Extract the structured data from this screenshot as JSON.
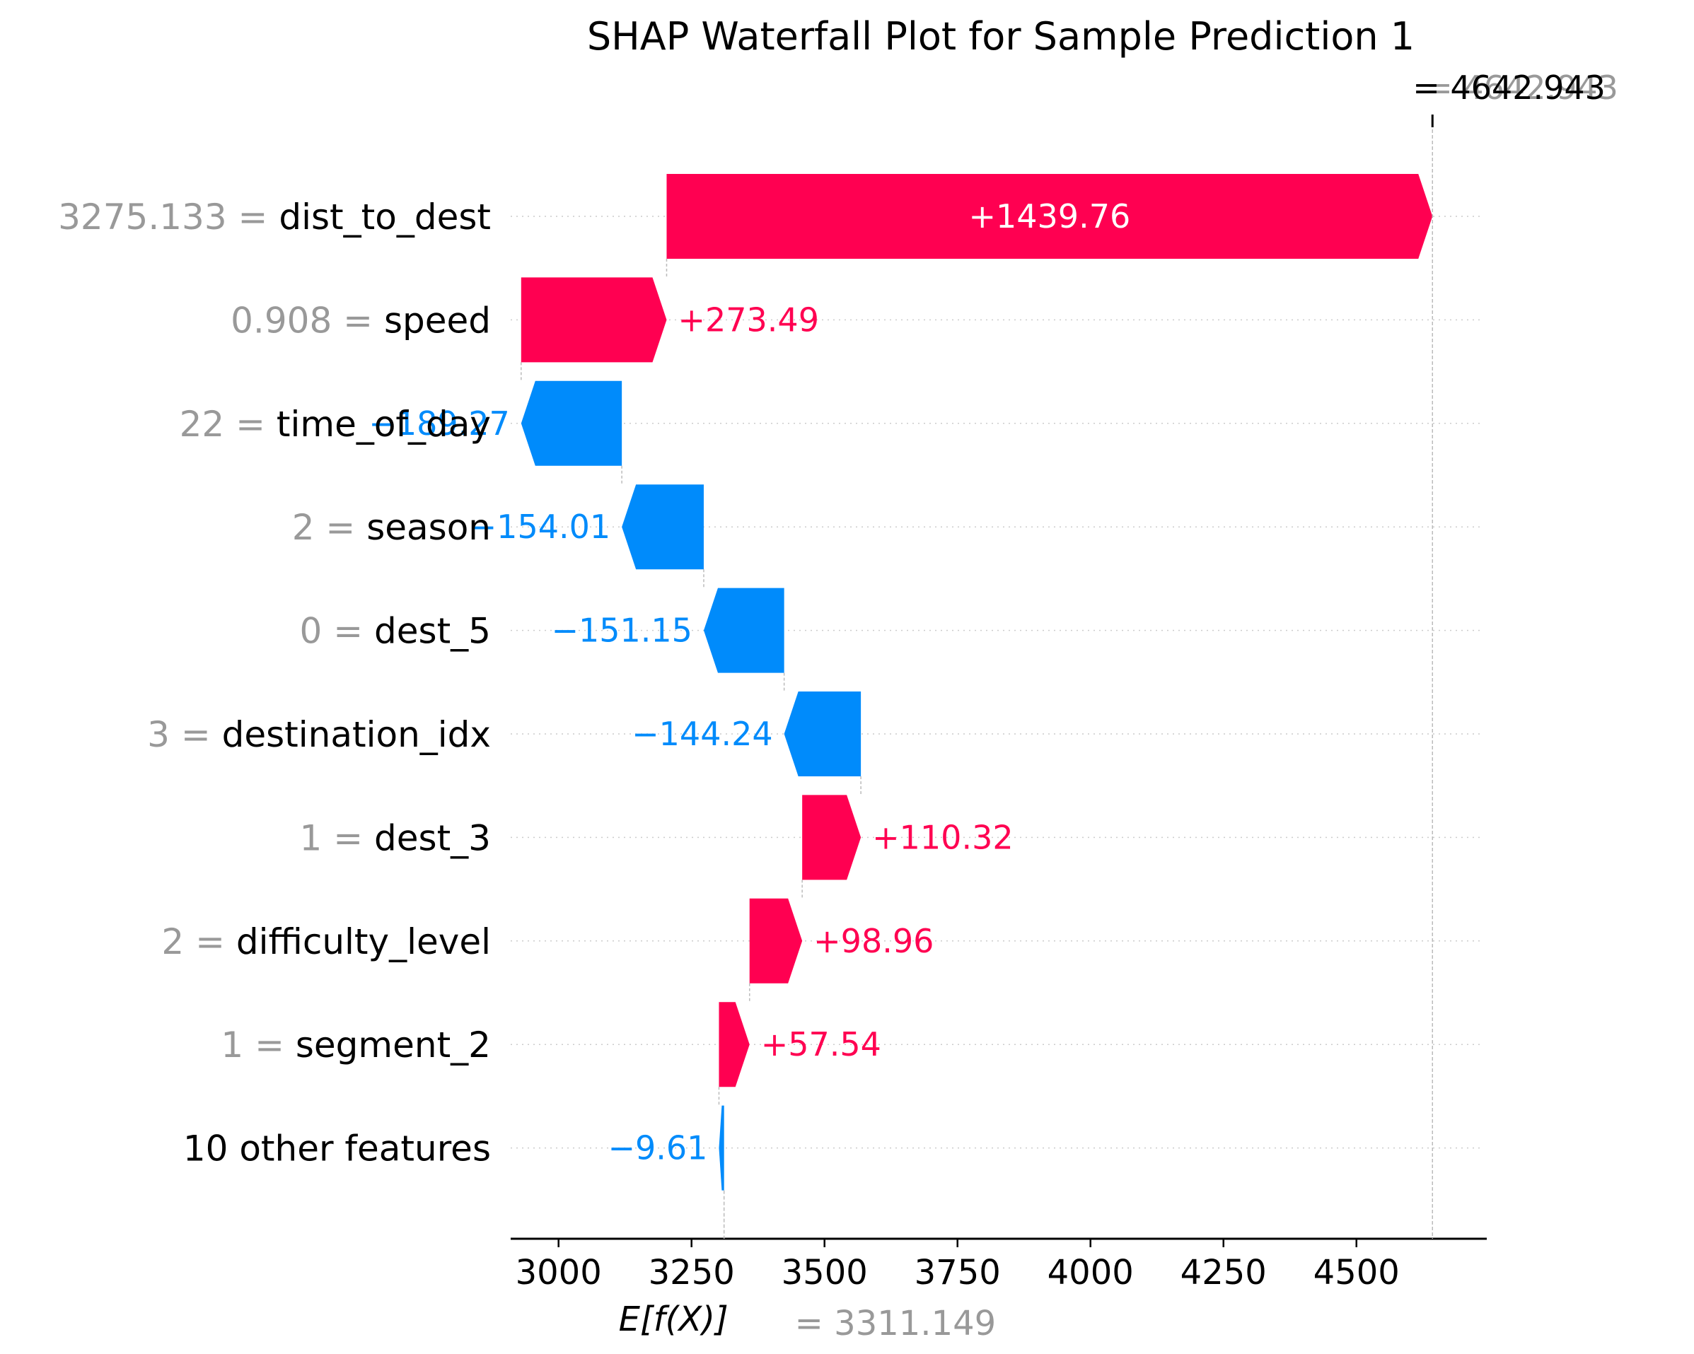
{
  "chart_data": {
    "type": "waterfall",
    "title": "SHAP Waterfall Plot for Sample Prediction 1",
    "base_value": 3311.149,
    "base_value_label": "= 3311.149",
    "base_axis_label": "E[f(X)]",
    "output_value": 4642.943,
    "output_value_label": "= 4642.943",
    "output_value_ghost_label": "= 4642.943",
    "xlim": [
      2910,
      4745
    ],
    "xticks": [
      3000,
      3250,
      3500,
      3750,
      4000,
      4250,
      4500
    ],
    "xtick_labels": [
      "3000",
      "3250",
      "3500",
      "3750",
      "4000",
      "4250",
      "4500"
    ],
    "features": [
      {
        "value": "3275.133",
        "name": "dist_to_dest",
        "shap": 1439.76,
        "label": "+1439.76"
      },
      {
        "value": "0.908",
        "name": "speed",
        "shap": 273.49,
        "label": "+273.49"
      },
      {
        "value": "22",
        "name": "time_of_day",
        "shap": -189.27,
        "label": "−189.27"
      },
      {
        "value": "2",
        "name": "season",
        "shap": -154.01,
        "label": "−154.01"
      },
      {
        "value": "0",
        "name": "dest_5",
        "shap": -151.15,
        "label": "−151.15"
      },
      {
        "value": "3",
        "name": "destination_idx",
        "shap": -144.24,
        "label": "−144.24"
      },
      {
        "value": "1",
        "name": "dest_3",
        "shap": 110.32,
        "label": "+110.32"
      },
      {
        "value": "2",
        "name": "difficulty_level",
        "shap": 98.96,
        "label": "+98.96"
      },
      {
        "value": "1",
        "name": "segment_2",
        "shap": 57.54,
        "label": "+57.54"
      },
      {
        "value": "",
        "name": "10 other features",
        "shap": -9.61,
        "label": "−9.61"
      }
    ],
    "colors": {
      "positive": "#ff0051",
      "negative": "#008bfb",
      "value_gray": "#999999",
      "text": "#000000"
    }
  }
}
